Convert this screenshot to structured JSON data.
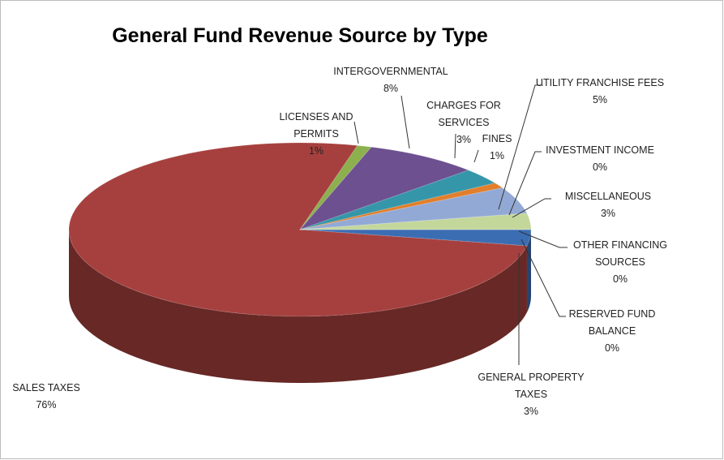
{
  "chart_data": {
    "type": "pie",
    "title": "General Fund Revenue Source by Type",
    "categories": [
      "GENERAL PROPERTY TAXES",
      "SALES TAXES",
      "LICENSES AND PERMITS",
      "INTERGOVERNMENTAL",
      "CHARGES FOR SERVICES",
      "FINES",
      "UTILITY FRANCHISE FEES",
      "INVESTMENT INCOME",
      "MISCELLANEOUS",
      "OTHER FINANCING SOURCES",
      "RESERVED FUND BALANCE"
    ],
    "values": [
      3,
      76,
      1,
      8,
      3,
      1,
      5,
      0,
      3,
      0,
      0
    ],
    "value_labels": [
      "3%",
      "76%",
      "1%",
      "8%",
      "3%",
      "1%",
      "5%",
      "0%",
      "3%",
      "0%",
      "0%"
    ],
    "colors": [
      "#3b6db3",
      "#a6403e",
      "#8bb04d",
      "#6d5090",
      "#3596aa",
      "#e17f2c",
      "#93a9d5",
      "#c9c9c9",
      "#c4d79b",
      "#b3a2c7",
      "#92cddc"
    ]
  }
}
